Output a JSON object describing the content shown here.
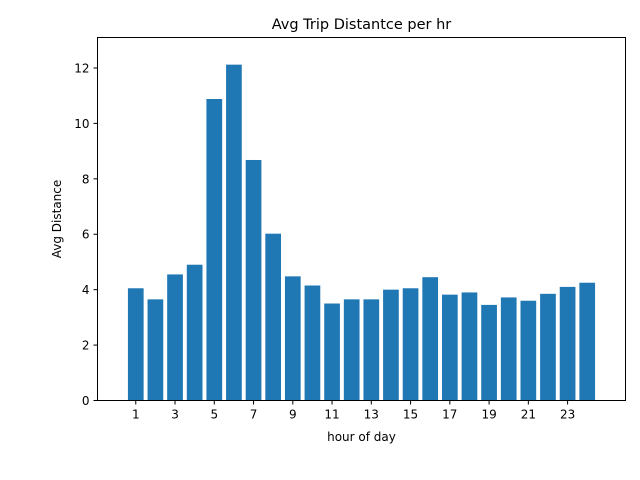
{
  "chart_data": {
    "type": "bar",
    "title": "Avg Trip Distantce per hr",
    "xlabel": "hour of day",
    "ylabel": "Avg Distance",
    "x": [
      1,
      2,
      3,
      4,
      5,
      6,
      7,
      8,
      9,
      10,
      11,
      12,
      13,
      14,
      15,
      16,
      17,
      18,
      19,
      20,
      21,
      22,
      23,
      24
    ],
    "values": [
      4.05,
      3.65,
      4.55,
      4.9,
      10.88,
      12.12,
      8.68,
      6.02,
      4.48,
      4.15,
      3.5,
      3.65,
      3.65,
      4.0,
      4.05,
      4.45,
      3.82,
      3.9,
      3.45,
      3.72,
      3.6,
      3.85,
      4.1,
      4.25
    ],
    "xticks": [
      1,
      3,
      5,
      7,
      9,
      11,
      13,
      15,
      17,
      19,
      21,
      23
    ],
    "yticks": [
      0,
      2,
      4,
      6,
      8,
      10,
      12
    ],
    "xlim": [
      -0.95,
      25.95
    ],
    "ylim": [
      0,
      13.1
    ],
    "bar_color": "#1f77b4",
    "grid": false,
    "legend": "none"
  }
}
